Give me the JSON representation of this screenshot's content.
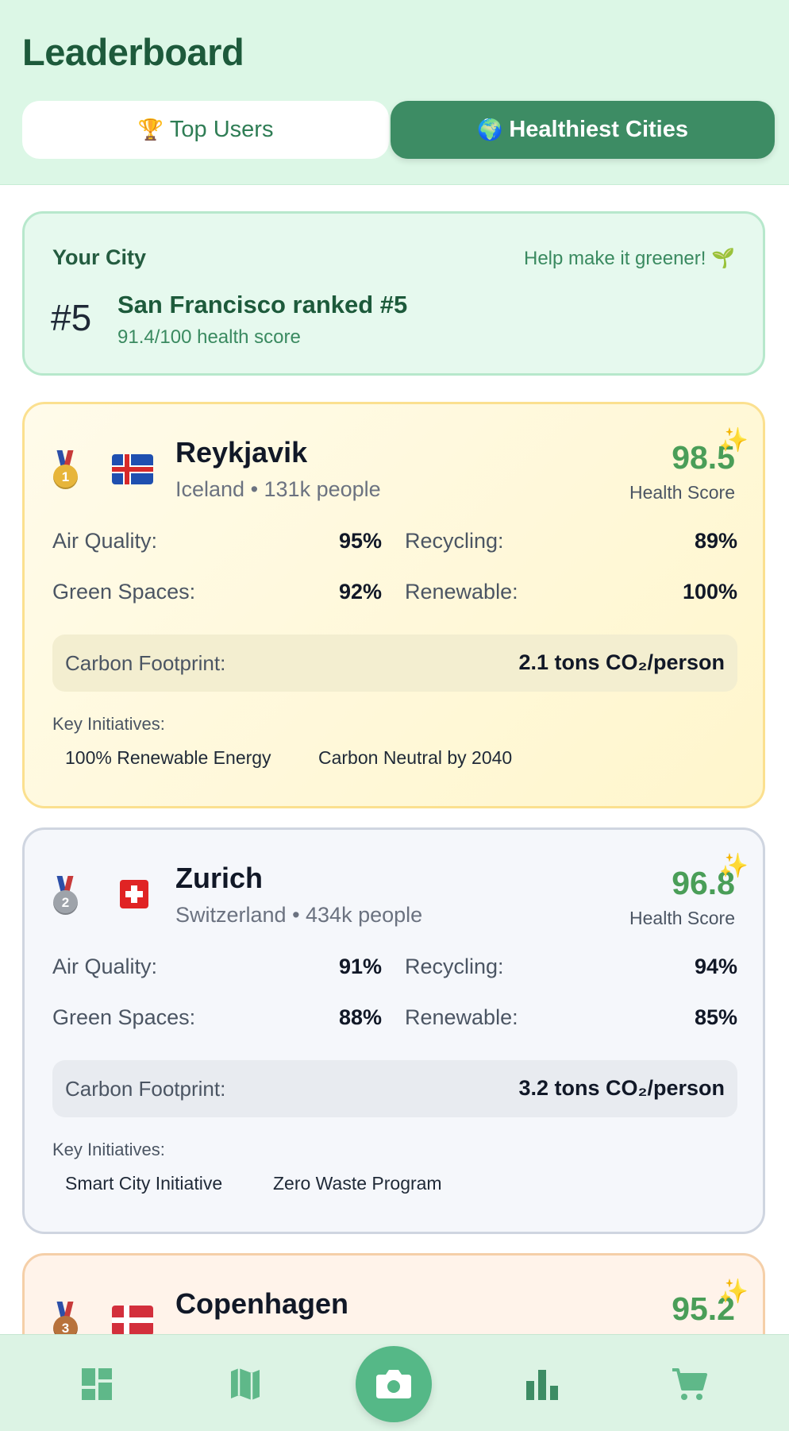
{
  "header": {
    "title": "Leaderboard",
    "tabs": [
      {
        "emoji": "🏆",
        "label": "Top Users",
        "active": false
      },
      {
        "emoji": "🌍",
        "label": "Healthiest Cities",
        "active": true
      }
    ]
  },
  "your_city": {
    "label": "Your City",
    "help": "Help make it greener! 🌱",
    "rank": "#5",
    "ranked_text": "San Francisco ranked #5",
    "score_text": "91.4/100 health score"
  },
  "cities": [
    {
      "name": "Reykjavik",
      "meta": "Iceland • 131k people",
      "medal": "1",
      "score": "98.5",
      "score_label": "Health Score",
      "metrics": {
        "air_label": "Air Quality:",
        "air": "95%",
        "recycling_label": "Recycling:",
        "recycling": "89%",
        "green_label": "Green Spaces:",
        "green": "92%",
        "renewable_label": "Renewable:",
        "renewable": "100%"
      },
      "carbon_label": "Carbon Footprint:",
      "carbon": "2.1 tons CO₂/person",
      "initiatives_label": "Key Initiatives:",
      "initiatives": [
        "100% Renewable Energy",
        "Carbon Neutral by 2040"
      ]
    },
    {
      "name": "Zurich",
      "meta": "Switzerland • 434k people",
      "medal": "2",
      "score": "96.8",
      "score_label": "Health Score",
      "metrics": {
        "air_label": "Air Quality:",
        "air": "91%",
        "recycling_label": "Recycling:",
        "recycling": "94%",
        "green_label": "Green Spaces:",
        "green": "88%",
        "renewable_label": "Renewable:",
        "renewable": "85%"
      },
      "carbon_label": "Carbon Footprint:",
      "carbon": "3.2 tons CO₂/person",
      "initiatives_label": "Key Initiatives:",
      "initiatives": [
        "Smart City Initiative",
        "Zero Waste Program"
      ]
    },
    {
      "name": "Copenhagen",
      "medal": "3",
      "score": "95.2"
    }
  ],
  "sparkle": "✨",
  "nav": {
    "items": [
      "dashboard-icon",
      "map-icon",
      "camera-icon",
      "bar-chart-icon",
      "cart-icon"
    ],
    "icon_color": "#5fb889",
    "active_bg": "#55b887"
  }
}
